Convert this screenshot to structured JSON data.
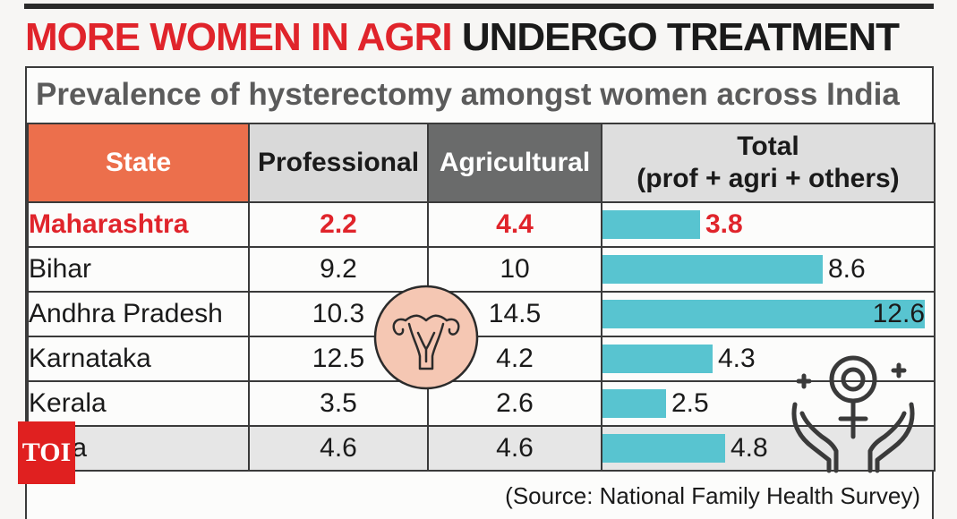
{
  "headline": {
    "red": "MORE WOMEN IN AGRI",
    "black": "UNDERGO TREATMENT"
  },
  "subtitle": "Prevalence of hysterectomy amongst women across India",
  "source": "(Source: National Family Health Survey)",
  "logo_text": "TOI",
  "colors": {
    "headline_red": "#e0242b",
    "bar": "#58c4d0",
    "state_header": "#ec6f4c",
    "agri_header": "#6a6b6b"
  },
  "icons": [
    "uterus-icon",
    "women-care-icon"
  ],
  "chart_data": {
    "type": "table",
    "columns": {
      "state": "State",
      "professional": "Professional",
      "agricultural": "Agricultural",
      "total_line1": "Total",
      "total_line2": "(prof + agri + others)"
    },
    "rows": [
      {
        "state": "Maharashtra",
        "professional": "2.2",
        "agricultural": "4.4",
        "total": 3.8,
        "total_label": "3.8",
        "highlight": true
      },
      {
        "state": "Bihar",
        "professional": "9.2",
        "agricultural": "10",
        "total": 8.6,
        "total_label": "8.6"
      },
      {
        "state": "Andhra Pradesh",
        "professional": "10.3",
        "agricultural": "14.5",
        "total": 12.6,
        "total_label": "12.6"
      },
      {
        "state": "Karnataka",
        "professional": "12.5",
        "agricultural": "4.2",
        "total": 4.3,
        "total_label": "4.3"
      },
      {
        "state": "Kerala",
        "professional": "3.5",
        "agricultural": "2.6",
        "total": 2.5,
        "total_label": "2.5"
      },
      {
        "state": "India",
        "professional": "4.6",
        "agricultural": "4.6",
        "total": 4.8,
        "total_label": "4.8",
        "shaded": true
      }
    ],
    "total_bar_max": 12.6
  }
}
